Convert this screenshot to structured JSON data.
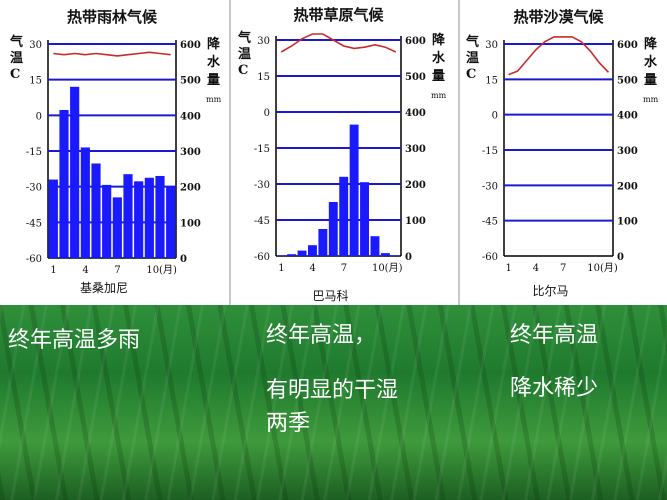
{
  "chart_data": [
    {
      "type": "bar",
      "title": "热带雨林气候",
      "place": "基桑加尼",
      "left_axis_label": "气温C°",
      "right_axis_label": "降水量",
      "right_unit": "mm",
      "temp_ticks": [
        "30",
        "15",
        "0",
        "-15",
        "-30",
        "-45",
        "-60"
      ],
      "precip_ticks": [
        "600",
        "500",
        "400",
        "300",
        "200",
        "100",
        "0"
      ],
      "month_labels": [
        "1",
        "4",
        "7",
        "10(月)"
      ],
      "ylim_temp": [
        -60,
        30
      ],
      "ylim_precip": [
        0,
        600
      ],
      "categories": [
        1,
        2,
        3,
        4,
        5,
        6,
        7,
        8,
        9,
        10,
        11,
        12
      ],
      "precip": [
        220,
        415,
        480,
        310,
        265,
        205,
        170,
        235,
        215,
        225,
        230,
        200
      ],
      "temp": [
        26,
        25.5,
        26,
        25.5,
        26,
        25.5,
        25,
        25.5,
        26,
        26.5,
        26,
        25.5
      ],
      "series_color": "#1a1aff",
      "line_color": "#cc2a2a"
    },
    {
      "type": "bar",
      "title": "热带草原气候",
      "place": "巴马科",
      "left_axis_label": "气温C°",
      "right_axis_label": "降水量",
      "right_unit": "mm",
      "temp_ticks": [
        "30",
        "15",
        "0",
        "-15",
        "-30",
        "-45",
        "-60"
      ],
      "precip_ticks": [
        "600",
        "500",
        "400",
        "300",
        "200",
        "100",
        "0"
      ],
      "month_labels": [
        "1",
        "4",
        "7",
        "10(月)"
      ],
      "ylim_temp": [
        -60,
        30
      ],
      "ylim_precip": [
        0,
        600
      ],
      "categories": [
        1,
        2,
        3,
        4,
        5,
        6,
        7,
        8,
        9,
        10,
        11,
        12
      ],
      "precip": [
        2,
        5,
        15,
        30,
        75,
        150,
        220,
        365,
        205,
        55,
        8,
        2
      ],
      "temp": [
        25,
        27.5,
        30.5,
        32.5,
        32.5,
        30,
        27.5,
        26.5,
        27,
        28,
        27,
        25
      ],
      "series_color": "#1a1aff",
      "line_color": "#cc2a2a"
    },
    {
      "type": "line",
      "title": "热带沙漠气候",
      "place": "比尔马",
      "left_axis_label": "气温C°",
      "right_axis_label": "降水量",
      "right_unit": "mm",
      "temp_ticks": [
        "30",
        "15",
        "0",
        "-15",
        "-30",
        "-45",
        "-60"
      ],
      "precip_ticks": [
        "600",
        "500",
        "400",
        "300",
        "200",
        "100",
        "0"
      ],
      "month_labels": [
        "1",
        "4",
        "7",
        "10(月)"
      ],
      "ylim_temp": [
        -60,
        30
      ],
      "ylim_precip": [
        0,
        600
      ],
      "categories": [
        1,
        2,
        3,
        4,
        5,
        6,
        7,
        8,
        9,
        10,
        11,
        12
      ],
      "precip": [
        0,
        0,
        0,
        0,
        0,
        0,
        0,
        0,
        0,
        0,
        0,
        0
      ],
      "temp": [
        17,
        18.5,
        23,
        27.5,
        31,
        33,
        33,
        33,
        31,
        27,
        22,
        18
      ],
      "series_color": "#1a1aff",
      "line_color": "#cc2a2a"
    }
  ],
  "captions": {
    "c1": "终年高温多雨",
    "c2a": "终年高温，",
    "c2b": "有明显的干湿",
    "c2c": "两季",
    "c3a": "终年高温",
    "c3b": "降水稀少"
  }
}
